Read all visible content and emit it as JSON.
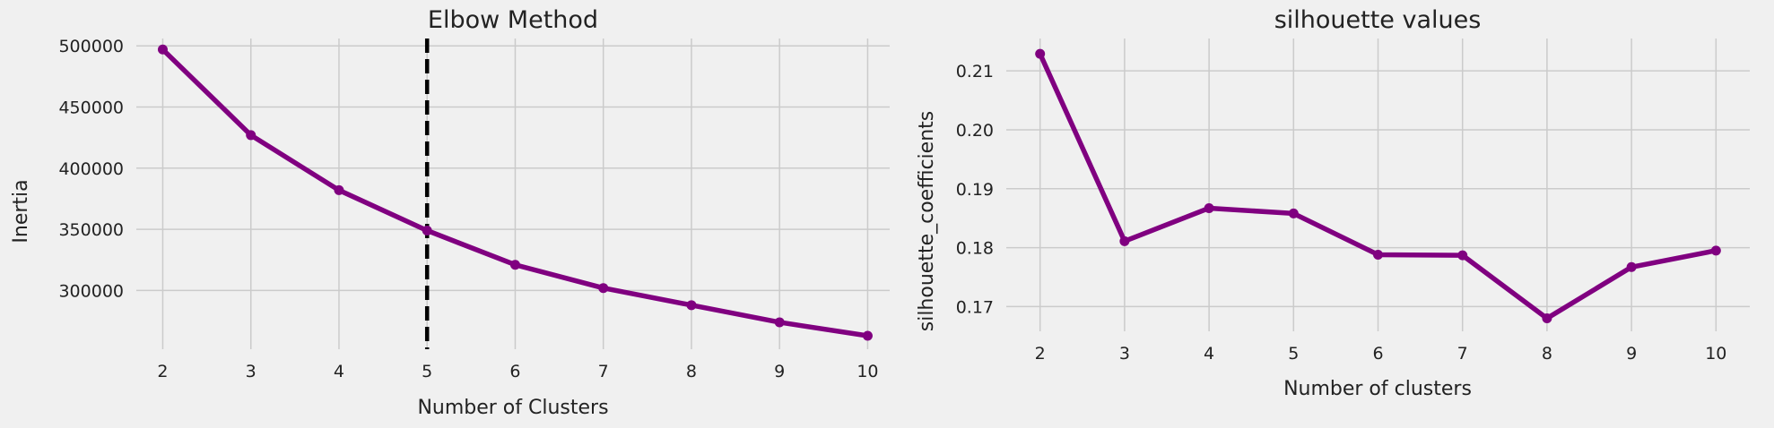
{
  "chart_data": [
    {
      "type": "line",
      "title": "Elbow Method",
      "xlabel": "Number of Clusters",
      "ylabel": "Inertia",
      "x": [
        2,
        3,
        4,
        5,
        6,
        7,
        8,
        9,
        10
      ],
      "series": [
        {
          "values": [
            497000,
            427000,
            382000,
            349000,
            321000,
            302000,
            288000,
            274000,
            263000
          ]
        }
      ],
      "xticks": [
        2,
        3,
        4,
        5,
        6,
        7,
        8,
        9,
        10
      ],
      "yticks": [
        300000,
        350000,
        400000,
        450000,
        500000
      ],
      "xlim": [
        1.7,
        10.25
      ],
      "ylim": [
        252000,
        506000
      ],
      "vline_x": 5,
      "grid": true,
      "color": "#800080"
    },
    {
      "type": "line",
      "title": "silhouette values",
      "xlabel": "Number of clusters",
      "ylabel": "silhouette_coefficients",
      "x": [
        2,
        3,
        4,
        5,
        6,
        7,
        8,
        9,
        10
      ],
      "series": [
        {
          "values": [
            0.2129,
            0.1811,
            0.1867,
            0.1858,
            0.1788,
            0.1787,
            0.168,
            0.1767,
            0.1795
          ]
        }
      ],
      "xticks": [
        2,
        3,
        4,
        5,
        6,
        7,
        8,
        9,
        10
      ],
      "yticks": [
        "0.17",
        "0.18",
        "0.19",
        "0.20",
        "0.21"
      ],
      "xlim": [
        1.6,
        10.4
      ],
      "ylim": [
        0.1658,
        0.2155
      ],
      "grid": true,
      "color": "#800080"
    }
  ]
}
